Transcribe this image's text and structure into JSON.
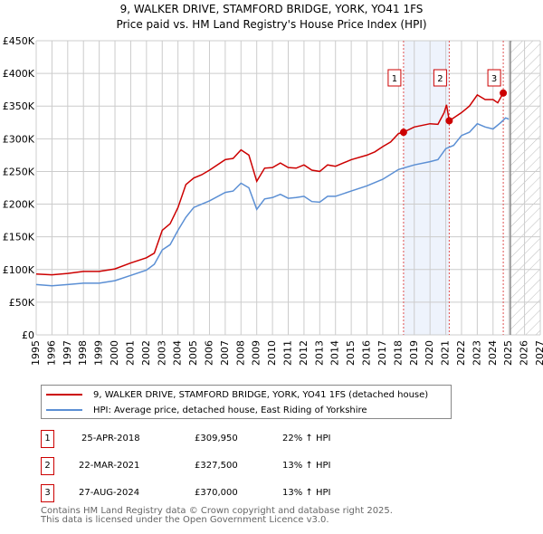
{
  "title": "9, WALKER DRIVE, STAMFORD BRIDGE, YORK, YO41 1FS",
  "subtitle": "Price paid vs. HM Land Registry's House Price Index (HPI)",
  "chart_data": {
    "type": "line",
    "title": "9, WALKER DRIVE, STAMFORD BRIDGE, YORK, YO41 1FS",
    "subtitle": "Price paid vs. HM Land Registry's House Price Index (HPI)",
    "xlim": [
      1995,
      2027
    ],
    "ylim": [
      0,
      450000
    ],
    "x_ticks": [
      "1995",
      "1996",
      "1997",
      "1998",
      "1999",
      "2000",
      "2001",
      "2002",
      "2003",
      "2004",
      "2005",
      "2006",
      "2007",
      "2008",
      "2009",
      "2010",
      "2011",
      "2012",
      "2013",
      "2014",
      "2015",
      "2016",
      "2017",
      "2018",
      "2019",
      "2020",
      "2021",
      "2022",
      "2023",
      "2024",
      "2025",
      "2026",
      "2027"
    ],
    "y_ticks": [
      {
        "value": 0,
        "label": "£0"
      },
      {
        "value": 50000,
        "label": "£50K"
      },
      {
        "value": 100000,
        "label": "£100K"
      },
      {
        "value": 150000,
        "label": "£150K"
      },
      {
        "value": 200000,
        "label": "£200K"
      },
      {
        "value": 250000,
        "label": "£250K"
      },
      {
        "value": 300000,
        "label": "£300K"
      },
      {
        "value": 350000,
        "label": "£350K"
      },
      {
        "value": 400000,
        "label": "£400K"
      },
      {
        "value": 450000,
        "label": "£450K"
      }
    ],
    "grid": true,
    "series": [
      {
        "name": "9, WALKER DRIVE, STAMFORD BRIDGE, YORK, YO41 1FS (detached house)",
        "color": "#cc0000",
        "x": [
          1995,
          1996,
          1997,
          1998,
          1999,
          2000,
          2001,
          2002,
          2002.5,
          2003,
          2003.5,
          2004,
          2004.5,
          2005,
          2005.5,
          2006,
          2007,
          2007.5,
          2008,
          2008.5,
          2009,
          2009.5,
          2010,
          2010.5,
          2011,
          2011.5,
          2012,
          2012.5,
          2013,
          2013.5,
          2014,
          2015,
          2016,
          2016.5,
          2017,
          2017.5,
          2018,
          2018.32,
          2019,
          2020,
          2020.5,
          2020.9,
          2021.05,
          2021.22,
          2022,
          2022.5,
          2023,
          2023.5,
          2024,
          2024.3,
          2024.65
        ],
        "y": [
          93000,
          92000,
          94000,
          97000,
          97000,
          101000,
          110000,
          118000,
          125000,
          160000,
          170000,
          195000,
          230000,
          240000,
          245000,
          252000,
          268000,
          270000,
          283000,
          275000,
          235000,
          255000,
          256000,
          263000,
          256000,
          255000,
          260000,
          252000,
          250000,
          260000,
          258000,
          268000,
          275000,
          280000,
          288000,
          295000,
          308000,
          309950,
          318000,
          323000,
          322000,
          340000,
          352000,
          327500,
          340000,
          350000,
          367000,
          360000,
          360000,
          355000,
          370000
        ]
      },
      {
        "name": "HPI: Average price, detached house, East Riding of Yorkshire",
        "color": "#5b8fd4",
        "x": [
          1995,
          1996,
          1997,
          1998,
          1999,
          2000,
          2001,
          2002,
          2002.5,
          2003,
          2003.5,
          2004,
          2004.5,
          2005,
          2005.5,
          2006,
          2007,
          2007.5,
          2008,
          2008.5,
          2009,
          2009.5,
          2010,
          2010.5,
          2011,
          2011.5,
          2012,
          2012.5,
          2013,
          2013.5,
          2014,
          2015,
          2016,
          2017,
          2018,
          2019,
          2020,
          2020.5,
          2021,
          2021.5,
          2022,
          2022.5,
          2023,
          2023.5,
          2024,
          2024.5,
          2024.8,
          2025
        ],
        "y": [
          77000,
          75000,
          77000,
          79000,
          79000,
          83000,
          91000,
          99000,
          108000,
          130000,
          138000,
          160000,
          180000,
          195000,
          200000,
          205000,
          218000,
          220000,
          232000,
          225000,
          192000,
          208000,
          210000,
          215000,
          209000,
          210000,
          212000,
          204000,
          203000,
          212000,
          212000,
          220000,
          228000,
          238000,
          253000,
          260000,
          265000,
          268000,
          285000,
          290000,
          305000,
          310000,
          323000,
          318000,
          315000,
          325000,
          332000,
          330000
        ]
      }
    ],
    "sales": [
      {
        "label": "1",
        "x": 2018.32,
        "value": 309950
      },
      {
        "label": "2",
        "x": 2021.22,
        "value": 327500
      },
      {
        "label": "3",
        "x": 2024.65,
        "value": 370000
      }
    ],
    "shaded_range": [
      2018.32,
      2021.22
    ],
    "forecast_from": 2025.1,
    "legend_placement": "below"
  },
  "legend": [
    {
      "label": "9, WALKER DRIVE, STAMFORD BRIDGE, YORK, YO41 1FS (detached house)",
      "color": "#cc0000"
    },
    {
      "label": "HPI: Average price, detached house, East Riding of Yorkshire",
      "color": "#5b8fd4"
    }
  ],
  "table": [
    {
      "num": "1",
      "date": "25-APR-2018",
      "price": "£309,950",
      "hpi": "22% ↑ HPI"
    },
    {
      "num": "2",
      "date": "22-MAR-2021",
      "price": "£327,500",
      "hpi": "13% ↑ HPI"
    },
    {
      "num": "3",
      "date": "27-AUG-2024",
      "price": "£370,000",
      "hpi": "13% ↑ HPI"
    }
  ],
  "footer": [
    "Contains HM Land Registry data © Crown copyright and database right 2025.",
    "This data is licensed under the Open Government Licence v3.0."
  ]
}
